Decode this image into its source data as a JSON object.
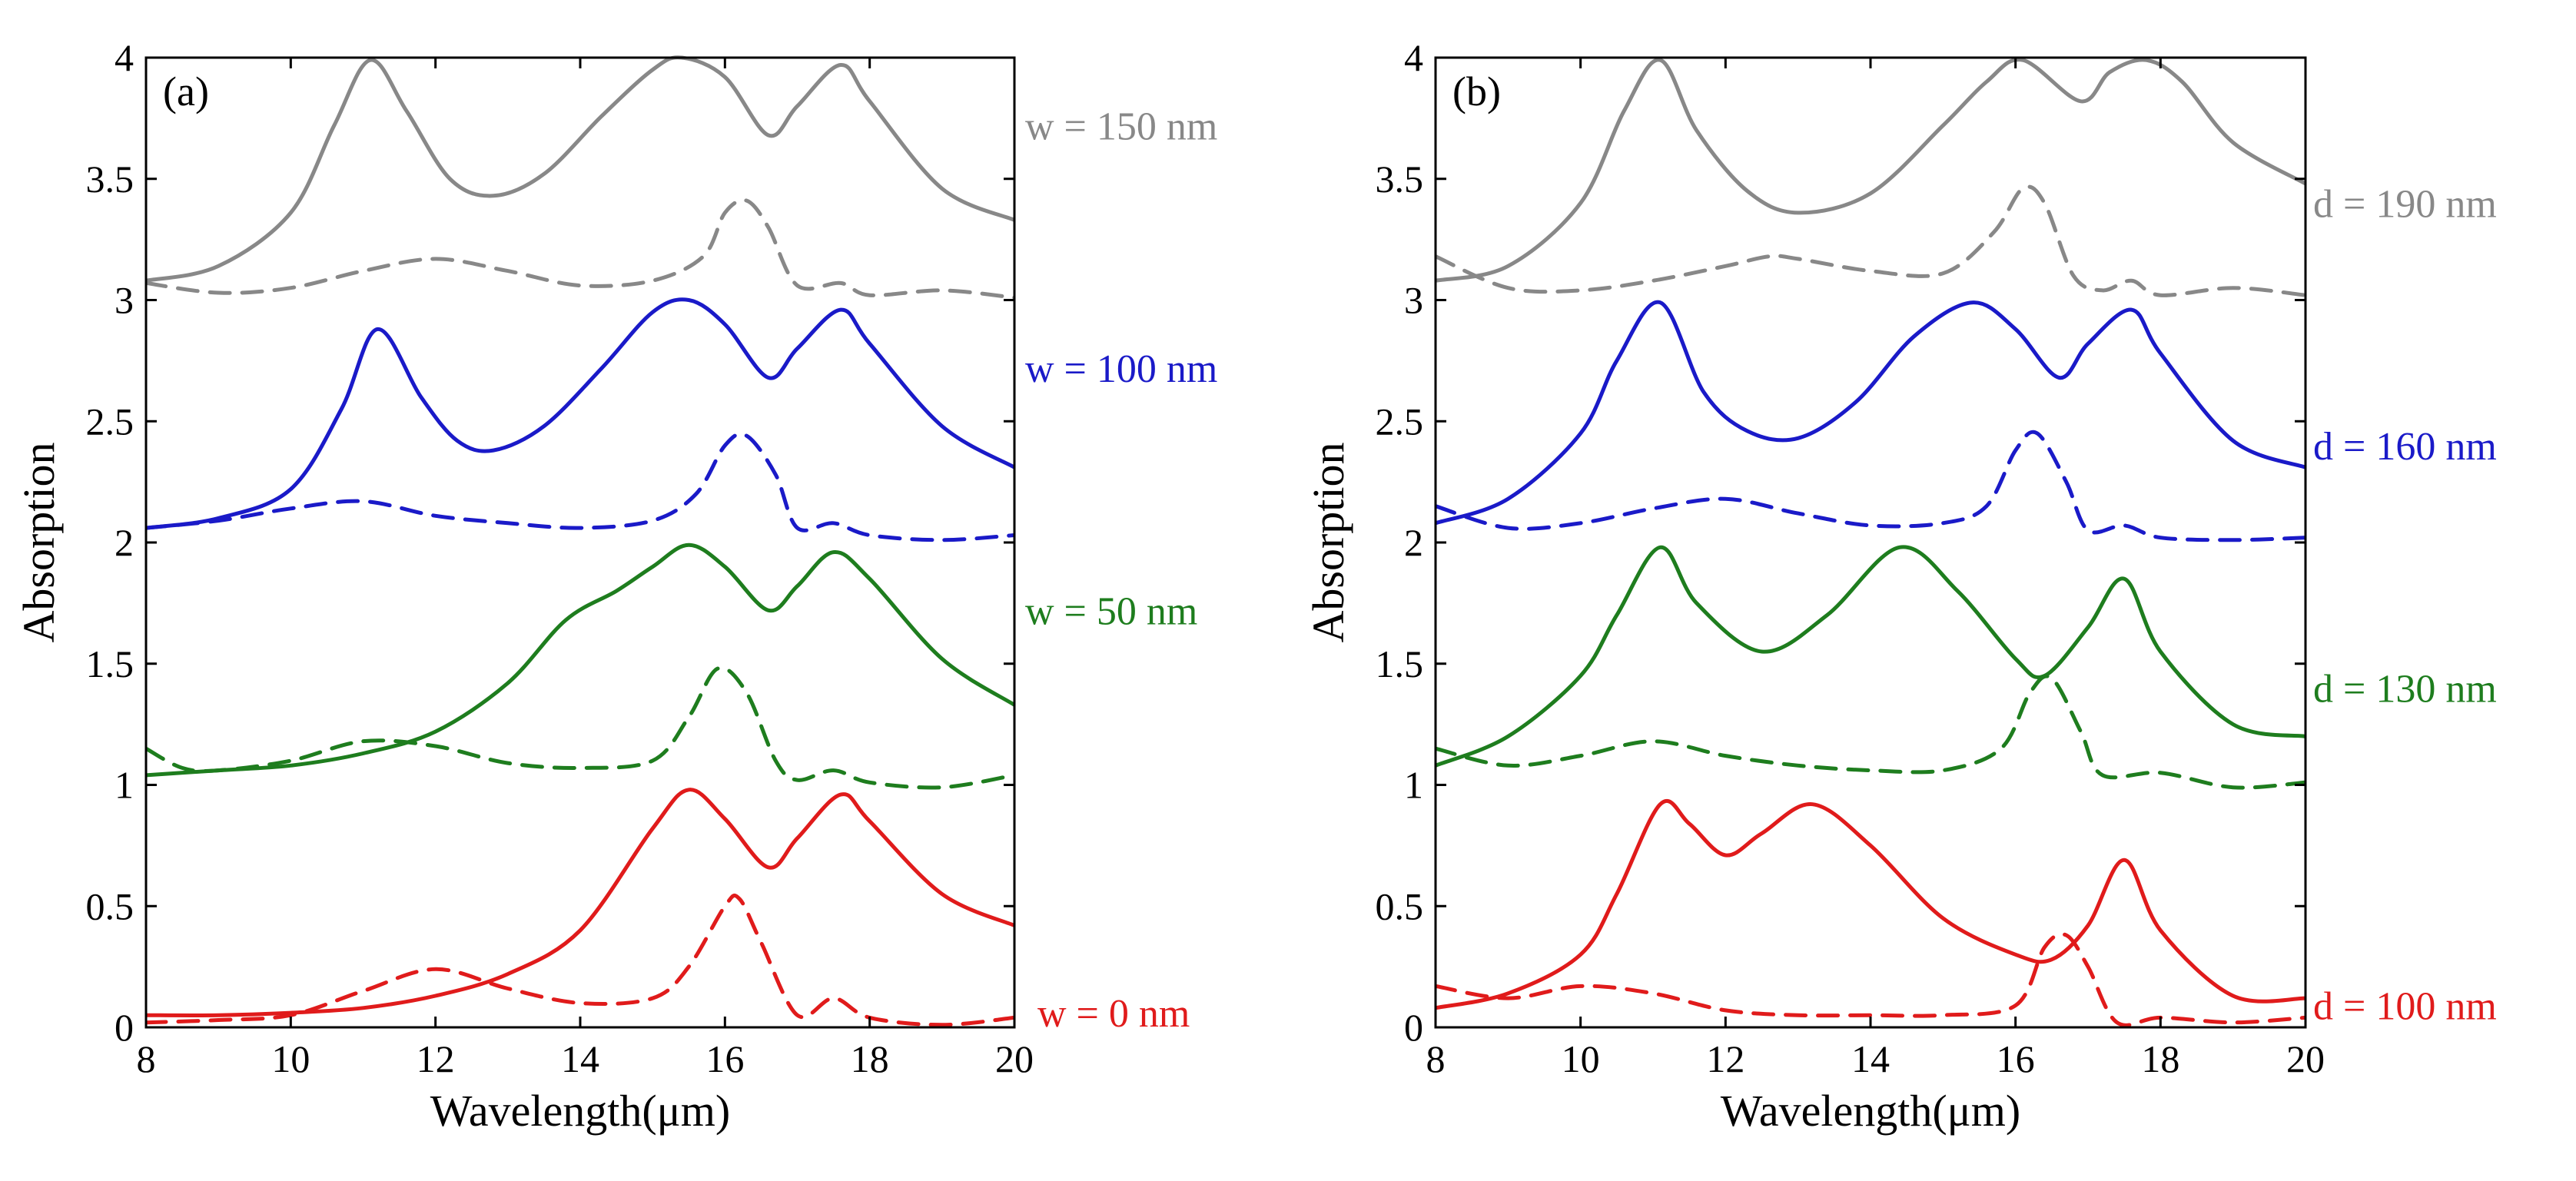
{
  "chart_data": [
    {
      "type": "line",
      "panel": "(a)",
      "xlabel": "Wavelength(μm)",
      "ylabel": "Absorption",
      "xlim": [
        8,
        20
      ],
      "ylim": [
        0,
        4
      ],
      "xticks": [
        8,
        10,
        12,
        14,
        16,
        18,
        20
      ],
      "xtick_labels": [
        "8",
        "10",
        "12",
        "14",
        "16",
        "18",
        "20"
      ],
      "yticks": [
        0,
        0.5,
        1,
        1.5,
        2,
        2.5,
        3,
        3.5,
        4
      ],
      "ytick_labels": [
        "0",
        "0.5",
        "1",
        "1.5",
        "2",
        "2.5",
        "3",
        "3.5",
        "4"
      ],
      "series": [
        {
          "name": "w = 0 nm",
          "color": "#e01b1b",
          "style": "solid",
          "x": [
            8,
            9,
            10,
            11,
            12,
            13,
            14,
            15,
            15.5,
            16,
            16.6,
            17,
            17.6,
            18,
            19,
            20
          ],
          "y": [
            0.05,
            0.05,
            0.06,
            0.08,
            0.13,
            0.22,
            0.4,
            0.82,
            0.98,
            0.86,
            0.66,
            0.78,
            0.96,
            0.85,
            0.55,
            0.42
          ]
        },
        {
          "name": "w = 0 nm (dashed)",
          "color": "#e01b1b",
          "style": "dashed",
          "x": [
            8,
            9,
            10,
            11,
            12,
            13,
            14,
            15,
            15.5,
            16,
            16.2,
            16.5,
            17,
            17.5,
            18,
            19,
            20
          ],
          "y": [
            0.02,
            0.03,
            0.05,
            0.15,
            0.24,
            0.16,
            0.1,
            0.12,
            0.25,
            0.5,
            0.53,
            0.35,
            0.05,
            0.12,
            0.04,
            0.01,
            0.04
          ]
        },
        {
          "name": "w = 50 nm",
          "color": "#1e7d1e",
          "style": "solid",
          "x": [
            8,
            9,
            10,
            11,
            12,
            13,
            13.8,
            14.5,
            15,
            15.5,
            16,
            16.6,
            17,
            17.5,
            18,
            19,
            20
          ],
          "y": [
            1.04,
            1.06,
            1.08,
            1.13,
            1.22,
            1.42,
            1.68,
            1.8,
            1.9,
            1.99,
            1.9,
            1.72,
            1.82,
            1.96,
            1.85,
            1.52,
            1.33
          ]
        },
        {
          "name": "w = 50 nm (dashed)",
          "color": "#1e7d1e",
          "style": "dashed",
          "x": [
            8,
            8.5,
            9,
            10,
            11,
            12,
            13,
            14,
            15,
            15.5,
            15.9,
            16.3,
            16.7,
            17,
            17.5,
            18,
            19,
            20
          ],
          "y": [
            1.15,
            1.07,
            1.06,
            1.1,
            1.18,
            1.16,
            1.09,
            1.07,
            1.1,
            1.28,
            1.48,
            1.38,
            1.1,
            1.02,
            1.06,
            1.01,
            0.99,
            1.04
          ]
        },
        {
          "name": "w = 100 nm",
          "color": "#1a1ac8",
          "style": "solid",
          "x": [
            8,
            9,
            10,
            10.7,
            11.2,
            11.8,
            12.3,
            12.8,
            13.5,
            14.3,
            15,
            15.5,
            16,
            16.6,
            17,
            17.6,
            18,
            19,
            20
          ],
          "y": [
            2.06,
            2.1,
            2.22,
            2.55,
            2.88,
            2.6,
            2.42,
            2.38,
            2.48,
            2.72,
            2.95,
            3.0,
            2.9,
            2.68,
            2.8,
            2.96,
            2.82,
            2.48,
            2.31
          ]
        },
        {
          "name": "w = 100 nm (dashed)",
          "color": "#1a1ac8",
          "style": "dashed",
          "x": [
            8,
            9,
            10,
            11,
            12,
            13,
            14,
            15,
            15.6,
            16,
            16.3,
            16.7,
            17,
            17.5,
            18,
            19,
            20
          ],
          "y": [
            2.06,
            2.09,
            2.14,
            2.17,
            2.11,
            2.08,
            2.06,
            2.09,
            2.2,
            2.4,
            2.44,
            2.28,
            2.06,
            2.08,
            2.03,
            2.01,
            2.03
          ]
        },
        {
          "name": "w = 150 nm",
          "color": "#888888",
          "style": "solid",
          "x": [
            8,
            9,
            10,
            10.6,
            11.1,
            11.6,
            12.2,
            12.8,
            13.5,
            14.3,
            15,
            15.4,
            16,
            16.6,
            17,
            17.6,
            18,
            19,
            20
          ],
          "y": [
            3.08,
            3.14,
            3.36,
            3.72,
            3.99,
            3.78,
            3.5,
            3.43,
            3.52,
            3.76,
            3.95,
            4.0,
            3.92,
            3.68,
            3.8,
            3.97,
            3.82,
            3.46,
            3.33
          ]
        },
        {
          "name": "w = 150 nm (dashed)",
          "color": "#888888",
          "style": "dashed",
          "x": [
            8,
            9,
            10,
            11,
            12,
            13,
            14,
            15,
            15.7,
            16,
            16.3,
            16.6,
            17,
            17.6,
            18,
            19,
            20
          ],
          "y": [
            3.07,
            3.03,
            3.05,
            3.12,
            3.17,
            3.12,
            3.06,
            3.08,
            3.18,
            3.36,
            3.41,
            3.3,
            3.06,
            3.07,
            3.02,
            3.04,
            3.01
          ]
        }
      ]
    },
    {
      "type": "line",
      "panel": "(b)",
      "xlabel": "Wavelength(μm)",
      "ylabel": "Absorption",
      "xlim": [
        8,
        20
      ],
      "ylim": [
        0,
        4
      ],
      "xticks": [
        8,
        10,
        12,
        14,
        16,
        18,
        20
      ],
      "xtick_labels": [
        "8",
        "10",
        "12",
        "14",
        "16",
        "18",
        "20"
      ],
      "yticks": [
        0,
        0.5,
        1,
        1.5,
        2,
        2.5,
        3,
        3.5,
        4
      ],
      "ytick_labels": [
        "0",
        "0.5",
        "1",
        "1.5",
        "2",
        "2.5",
        "3",
        "3.5",
        "4"
      ],
      "series": [
        {
          "name": "d = 100 nm",
          "color": "#e01b1b",
          "style": "solid",
          "x": [
            8,
            9,
            10,
            10.5,
            11.1,
            11.5,
            12,
            12.5,
            13.2,
            14,
            15,
            16,
            16.5,
            17,
            17.5,
            18,
            19,
            20
          ],
          "y": [
            0.08,
            0.14,
            0.3,
            0.55,
            0.92,
            0.84,
            0.71,
            0.8,
            0.92,
            0.75,
            0.45,
            0.3,
            0.28,
            0.42,
            0.69,
            0.4,
            0.13,
            0.12
          ]
        },
        {
          "name": "d = 100 nm (dashed)",
          "color": "#e01b1b",
          "style": "dashed",
          "x": [
            8,
            9,
            10,
            11,
            12,
            13,
            14,
            15,
            16,
            16.4,
            16.7,
            17,
            17.4,
            18,
            19,
            20
          ],
          "y": [
            0.17,
            0.12,
            0.17,
            0.14,
            0.07,
            0.05,
            0.05,
            0.05,
            0.09,
            0.33,
            0.38,
            0.25,
            0.02,
            0.04,
            0.02,
            0.04
          ]
        },
        {
          "name": "d = 130 nm",
          "color": "#1e7d1e",
          "style": "solid",
          "x": [
            8,
            9,
            10,
            10.5,
            11.1,
            11.6,
            12.5,
            13.4,
            14.4,
            15.2,
            16,
            16.4,
            17,
            17.5,
            18,
            19,
            20
          ],
          "y": [
            1.08,
            1.2,
            1.45,
            1.7,
            1.98,
            1.75,
            1.55,
            1.7,
            1.98,
            1.8,
            1.52,
            1.45,
            1.65,
            1.85,
            1.55,
            1.25,
            1.2
          ]
        },
        {
          "name": "d = 130 nm (dashed)",
          "color": "#1e7d1e",
          "style": "dashed",
          "x": [
            8,
            9,
            10,
            11,
            12,
            13,
            14,
            15,
            15.8,
            16.2,
            16.5,
            16.9,
            17.2,
            18,
            19,
            20
          ],
          "y": [
            1.15,
            1.08,
            1.12,
            1.18,
            1.12,
            1.08,
            1.06,
            1.06,
            1.15,
            1.38,
            1.44,
            1.22,
            1.04,
            1.05,
            0.99,
            1.01
          ]
        },
        {
          "name": "d = 160 nm",
          "color": "#1a1ac8",
          "style": "solid",
          "x": [
            8,
            9,
            10,
            10.5,
            11.1,
            11.7,
            12.3,
            13,
            13.8,
            14.6,
            15.4,
            16,
            16.6,
            17,
            17.6,
            18,
            19,
            20
          ],
          "y": [
            2.08,
            2.18,
            2.45,
            2.75,
            2.99,
            2.62,
            2.46,
            2.43,
            2.58,
            2.85,
            2.99,
            2.88,
            2.68,
            2.82,
            2.96,
            2.78,
            2.42,
            2.31
          ]
        },
        {
          "name": "d = 160 nm (dashed)",
          "color": "#1a1ac8",
          "style": "dashed",
          "x": [
            8,
            9,
            10,
            11,
            12,
            13,
            14,
            15,
            15.6,
            16,
            16.3,
            16.7,
            17,
            17.5,
            18,
            19,
            20
          ],
          "y": [
            2.15,
            2.06,
            2.08,
            2.14,
            2.18,
            2.12,
            2.07,
            2.08,
            2.15,
            2.38,
            2.45,
            2.25,
            2.05,
            2.07,
            2.02,
            2.01,
            2.02
          ]
        },
        {
          "name": "d = 190 nm",
          "color": "#888888",
          "style": "solid",
          "x": [
            8,
            9,
            10,
            10.6,
            11.1,
            11.6,
            12.3,
            13,
            14,
            15,
            15.6,
            16.1,
            16.9,
            17.3,
            17.8,
            18.3,
            19,
            20
          ],
          "y": [
            3.08,
            3.14,
            3.4,
            3.78,
            3.99,
            3.7,
            3.45,
            3.36,
            3.44,
            3.72,
            3.9,
            3.99,
            3.82,
            3.94,
            3.99,
            3.9,
            3.65,
            3.48
          ]
        },
        {
          "name": "d = 190 nm (dashed)",
          "color": "#888888",
          "style": "dashed",
          "x": [
            8,
            9,
            10,
            11,
            12,
            12.6,
            13,
            14,
            15,
            15.7,
            16.1,
            16.4,
            16.8,
            17.2,
            17.6,
            18,
            19,
            20
          ],
          "y": [
            3.18,
            3.05,
            3.04,
            3.08,
            3.14,
            3.18,
            3.17,
            3.12,
            3.11,
            3.28,
            3.46,
            3.4,
            3.1,
            3.04,
            3.08,
            3.02,
            3.05,
            3.02
          ]
        }
      ]
    }
  ]
}
